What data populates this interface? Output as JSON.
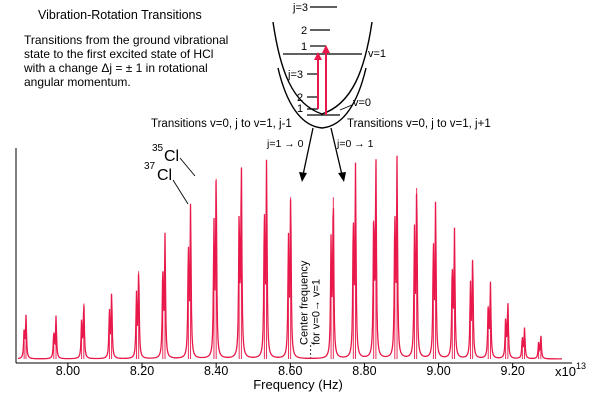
{
  "title": "Vibration-Rotation Transitions",
  "description": [
    "Transitions from the ground vibrational",
    "state to the first excited state of HCl",
    "with a change Δj = ± 1  in rotational",
    "angular momentum."
  ],
  "branch_left": "Transitions v=0, j to v=1, j-1",
  "branch_right": "Transitions v=0, j to v=1, j+1",
  "level_upper_label": "v=1",
  "level_lower_label": "v=0",
  "upper_j_labels": [
    "j=3",
    "2",
    "1"
  ],
  "lower_j_labels": [
    "j=3",
    "2",
    "1"
  ],
  "transition_left": "j=1 → 0",
  "transition_right": "j=0 → 1",
  "isotope_35": {
    "mass": "35",
    "symbol": "Cl"
  },
  "isotope_37": {
    "mass": "37",
    "symbol": "Cl"
  },
  "center_label": [
    "Center frequency",
    "for v=0→ v=1"
  ],
  "colors": {
    "spectrum": "#e8194a",
    "level_arrow": "#e8194a",
    "ink": "#000000"
  },
  "chart_data": {
    "type": "line",
    "xlabel": "Frequency (Hz)",
    "x_multiplier_label": "x10",
    "x_multiplier_exponent": "13",
    "xlim": [
      7.86,
      9.36
    ],
    "x_ticks": [
      8.0,
      8.2,
      8.4,
      8.6,
      8.8,
      9.0,
      9.2
    ],
    "x_tick_labels": [
      "8.00",
      "8.20",
      "8.40",
      "8.60",
      "8.80",
      "9.00",
      "9.20"
    ],
    "center_frequency": 8.655,
    "series": [
      {
        "name": "35Cl",
        "peaks": [
          {
            "x": 7.887,
            "h": 0.18
          },
          {
            "x": 7.968,
            "h": 0.18
          },
          {
            "x": 8.043,
            "h": 0.24
          },
          {
            "x": 8.118,
            "h": 0.28
          },
          {
            "x": 8.191,
            "h": 0.38
          },
          {
            "x": 8.262,
            "h": 0.52
          },
          {
            "x": 8.331,
            "h": 0.65
          },
          {
            "x": 8.4,
            "h": 0.78
          },
          {
            "x": 8.468,
            "h": 0.83
          },
          {
            "x": 8.536,
            "h": 0.83
          },
          {
            "x": 8.601,
            "h": 0.7
          },
          {
            "x": 8.716,
            "h": 0.7
          },
          {
            "x": 8.776,
            "h": 0.81
          },
          {
            "x": 8.831,
            "h": 0.84
          },
          {
            "x": 8.888,
            "h": 0.84
          },
          {
            "x": 8.941,
            "h": 0.74
          },
          {
            "x": 8.992,
            "h": 0.66
          },
          {
            "x": 9.043,
            "h": 0.54
          },
          {
            "x": 9.092,
            "h": 0.43
          },
          {
            "x": 9.14,
            "h": 0.32
          },
          {
            "x": 9.187,
            "h": 0.24
          },
          {
            "x": 9.232,
            "h": 0.13
          },
          {
            "x": 9.276,
            "h": 0.1
          }
        ]
      },
      {
        "name": "37Cl",
        "peaks": [
          {
            "x": 7.882,
            "h": 0.12
          },
          {
            "x": 7.962,
            "h": 0.11
          },
          {
            "x": 8.037,
            "h": 0.16
          },
          {
            "x": 8.112,
            "h": 0.2
          },
          {
            "x": 8.185,
            "h": 0.27
          },
          {
            "x": 8.256,
            "h": 0.38
          },
          {
            "x": 8.325,
            "h": 0.46
          },
          {
            "x": 8.394,
            "h": 0.56
          },
          {
            "x": 8.462,
            "h": 0.6
          },
          {
            "x": 8.53,
            "h": 0.6
          },
          {
            "x": 8.595,
            "h": 0.5
          },
          {
            "x": 8.71,
            "h": 0.5
          },
          {
            "x": 8.77,
            "h": 0.58
          },
          {
            "x": 8.825,
            "h": 0.6
          },
          {
            "x": 8.882,
            "h": 0.6
          },
          {
            "x": 8.935,
            "h": 0.53
          },
          {
            "x": 8.986,
            "h": 0.47
          },
          {
            "x": 9.037,
            "h": 0.39
          },
          {
            "x": 9.086,
            "h": 0.31
          },
          {
            "x": 9.134,
            "h": 0.23
          },
          {
            "x": 9.181,
            "h": 0.17
          },
          {
            "x": 9.226,
            "h": 0.09
          },
          {
            "x": 9.27,
            "h": 0.07
          }
        ]
      }
    ]
  }
}
